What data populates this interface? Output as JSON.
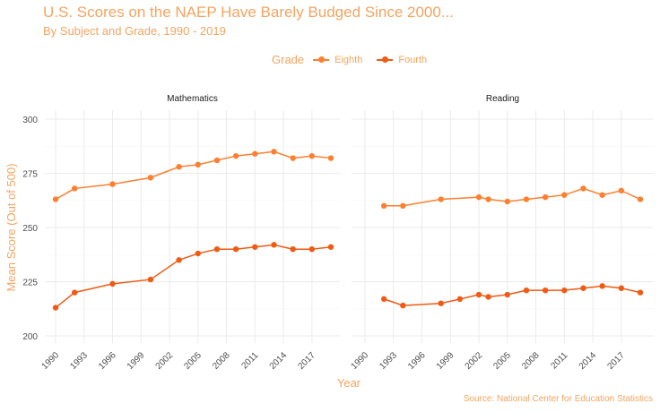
{
  "title": "U.S. Scores on the NAEP Have Barely Budged Since 2000...",
  "subtitle": "By Subject and Grade, 1990 - 2019",
  "caption": "Source: National Center for Education Statistics",
  "legend": {
    "title": "Grade",
    "entries": [
      {
        "label": "Eighth",
        "color": "#fd7f2f"
      },
      {
        "label": "Fourth",
        "color": "#f05a14"
      }
    ]
  },
  "chart_data": {
    "type": "line",
    "xlabel": "Year",
    "ylabel": "Mean Score (Out of 500)",
    "xlim": [
      1990,
      2019
    ],
    "ylim": [
      200,
      300
    ],
    "xticks": [
      "1990",
      "1993",
      "1996",
      "1999",
      "2002",
      "2005",
      "2008",
      "2011",
      "2014",
      "2017"
    ],
    "yticks": [
      "200",
      "225",
      "250",
      "275",
      "300"
    ],
    "grid": true,
    "legend_position": "top",
    "panels": [
      {
        "name": "Mathematics",
        "series": [
          {
            "name": "Eighth",
            "x": [
              1990,
              1992,
              1996,
              2000,
              2003,
              2005,
              2007,
              2009,
              2011,
              2013,
              2015,
              2017,
              2019
            ],
            "y": [
              263,
              268,
              270,
              273,
              278,
              279,
              281,
              283,
              284,
              285,
              282,
              283,
              282
            ]
          },
          {
            "name": "Fourth",
            "x": [
              1990,
              1992,
              1996,
              2000,
              2003,
              2005,
              2007,
              2009,
              2011,
              2013,
              2015,
              2017,
              2019
            ],
            "y": [
              213,
              220,
              224,
              226,
              235,
              238,
              240,
              240,
              241,
              242,
              240,
              240,
              241
            ]
          }
        ]
      },
      {
        "name": "Reading",
        "series": [
          {
            "name": "Eighth",
            "x": [
              1992,
              1994,
              1998,
              2002,
              2003,
              2005,
              2007,
              2009,
              2011,
              2013,
              2015,
              2017,
              2019
            ],
            "y": [
              260,
              260,
              263,
              264,
              263,
              262,
              263,
              264,
              265,
              268,
              265,
              267,
              263
            ]
          },
          {
            "name": "Fourth",
            "x": [
              1992,
              1994,
              1998,
              2000,
              2002,
              2003,
              2005,
              2007,
              2009,
              2011,
              2013,
              2015,
              2017,
              2019
            ],
            "y": [
              217,
              214,
              215,
              217,
              219,
              218,
              219,
              221,
              221,
              221,
              222,
              223,
              222,
              220
            ]
          }
        ]
      }
    ]
  }
}
